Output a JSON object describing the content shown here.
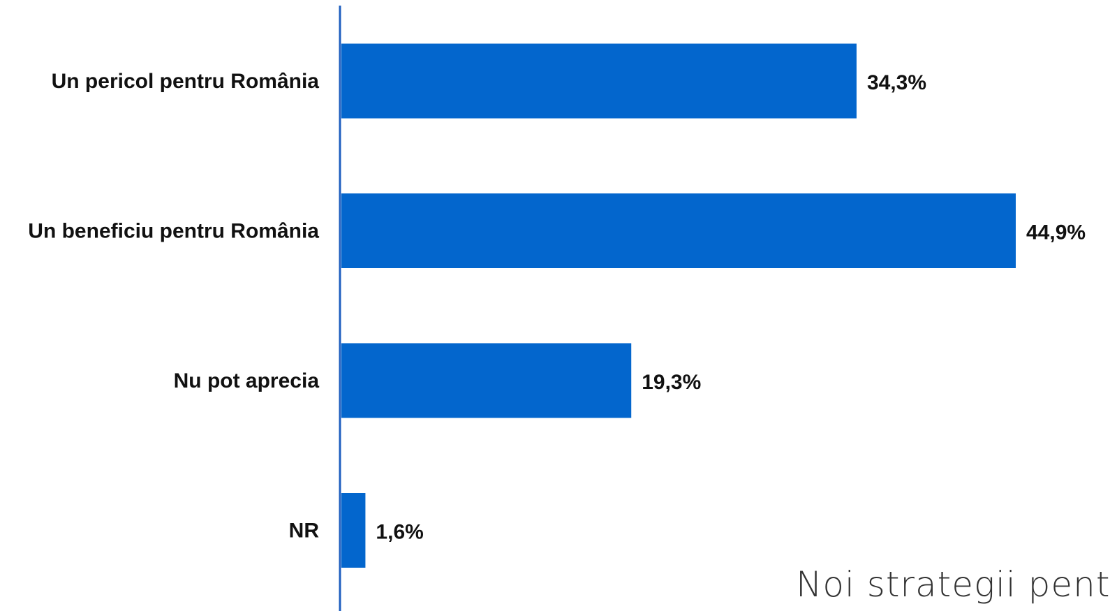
{
  "chart_data": {
    "type": "bar",
    "orientation": "horizontal",
    "categories": [
      "Un pericol pentru România",
      "Un beneficiu pentru România",
      "Nu pot aprecia",
      "NR"
    ],
    "values": [
      34.3,
      44.9,
      19.3,
      1.6
    ],
    "value_labels": [
      "34,3%",
      "44,9%",
      "19,3%",
      "1,6%"
    ],
    "title": "",
    "xlabel": "",
    "ylabel": "",
    "xlim": [
      0,
      45
    ],
    "grid": false,
    "legend": "none",
    "bar_color": "#0366CD",
    "axis_color": "#1F5FBF"
  },
  "footer": {
    "text": "Noi strategii pent"
  }
}
